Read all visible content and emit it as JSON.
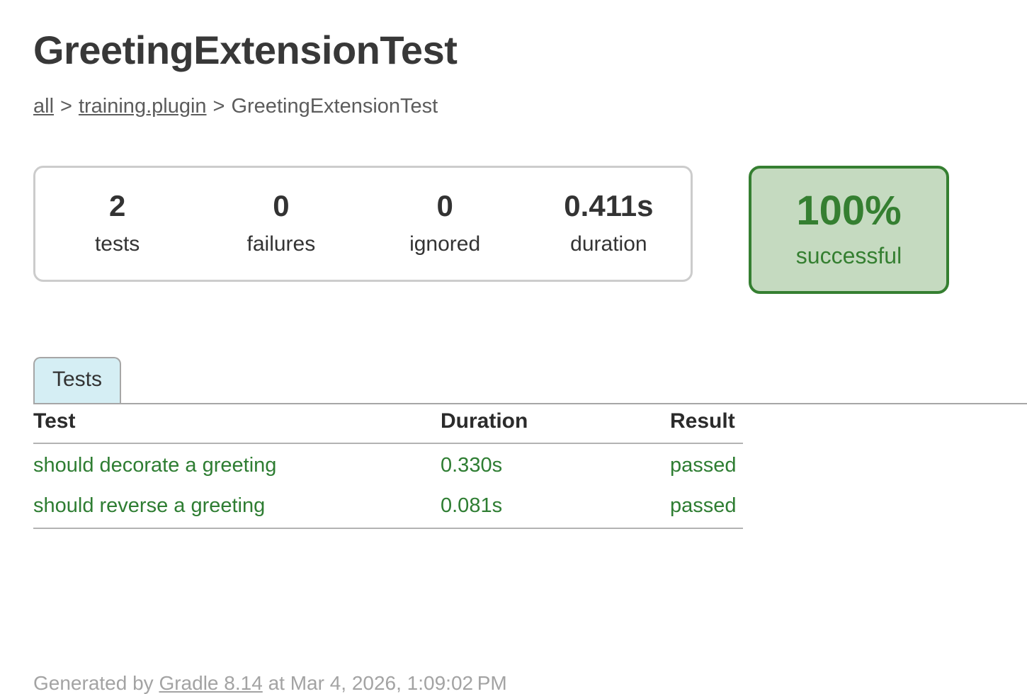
{
  "page": {
    "title": "GreetingExtensionTest"
  },
  "breadcrumb": {
    "separator": ">",
    "items": [
      {
        "label": "all"
      },
      {
        "label": "training.plugin"
      },
      {
        "label": "GreetingExtensionTest"
      }
    ]
  },
  "summary": {
    "counters": [
      {
        "value": "2",
        "label": "tests"
      },
      {
        "value": "0",
        "label": "failures"
      },
      {
        "value": "0",
        "label": "ignored"
      },
      {
        "value": "0.411s",
        "label": "duration"
      }
    ],
    "result_badge": {
      "percentage": "100%",
      "label": "successful"
    }
  },
  "tabs": [
    {
      "label": "Tests",
      "selected": true
    }
  ],
  "tests_table": {
    "columns": [
      "Test",
      "Duration",
      "Result"
    ],
    "rows": [
      {
        "test": "should decorate a greeting",
        "duration": "0.330s",
        "result": "passed"
      },
      {
        "test": "should reverse a greeting",
        "duration": "0.081s",
        "result": "passed"
      }
    ]
  },
  "footer": {
    "prefix": "Generated by",
    "link_label": "Gradle 8.14",
    "suffix": "at Mar 4, 2026, 1:09:02 PM"
  },
  "colors": {
    "success_green": "#2e7d32",
    "badge_background": "#c5dac0",
    "badge_border": "#357f31",
    "tab_background": "#d5eef4",
    "divider_gray": "#b3b3b3"
  }
}
